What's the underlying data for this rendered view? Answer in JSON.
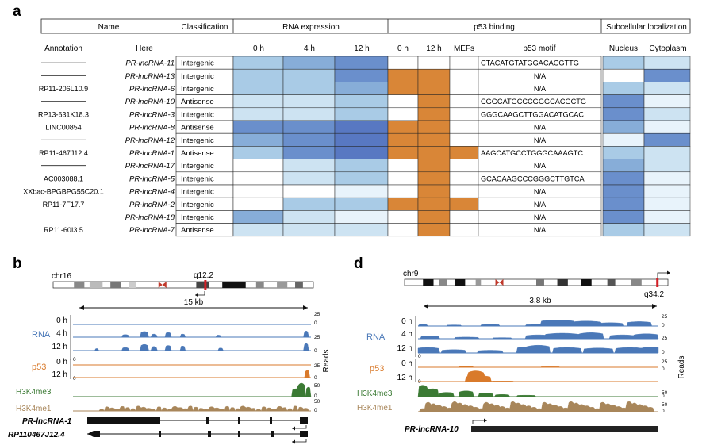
{
  "panel_a": {
    "label": "a",
    "header_top": {
      "name": "Name",
      "classification": "Classification",
      "rna_expression": "RNA expression",
      "p53_binding": "p53 binding",
      "subcellular": "Subcellular localization"
    },
    "header_sub": {
      "annotation": "Annotation",
      "here": "Here",
      "rna_0h": "0 h",
      "rna_4h": "4 h",
      "rna_12h": "12 h",
      "p53_0h": "0 h",
      "p53_12h": "12 h",
      "mefs": "MEFs",
      "motif": "p53 motif",
      "nucleus": "Nucleus",
      "cytoplasm": "Cytoplasm"
    },
    "colors": {
      "blue_scale": [
        "#ffffff",
        "#e8f3fb",
        "#cde3f2",
        "#a9cbe6",
        "#87add8",
        "#6a8fcc",
        "#5878c2"
      ],
      "p53_bound": "#d98637"
    },
    "rows": [
      {
        "annotation": "",
        "here": "PR-lncRNA-11",
        "classification": "Intergenic",
        "rna": [
          3,
          4,
          5
        ],
        "p53": [
          0,
          0,
          0
        ],
        "motif": "CTACATGTATGGACACGTTG",
        "loc": [
          3,
          2
        ]
      },
      {
        "annotation": "",
        "here": "PR-lncRNA-13",
        "classification": "Intergenic",
        "rna": [
          3,
          3,
          5
        ],
        "p53": [
          1,
          1,
          0
        ],
        "motif": "N/A",
        "loc": [
          0,
          5
        ]
      },
      {
        "annotation": "RP11-206L10.9",
        "here": "PR-lncRNA-6",
        "classification": "Intergenic",
        "rna": [
          3,
          3,
          4
        ],
        "p53": [
          1,
          1,
          0
        ],
        "motif": "N/A",
        "loc": [
          3,
          2
        ]
      },
      {
        "annotation": "",
        "here": "PR-lncRNA-10",
        "classification": "Antisense",
        "rna": [
          2,
          2,
          3
        ],
        "p53": [
          0,
          1,
          0
        ],
        "motif": "CGGCATGCCCGGGCACGCTG",
        "loc": [
          5,
          1
        ]
      },
      {
        "annotation": "RP13-631K18.3",
        "here": "PR-lncRNA-3",
        "classification": "Intergenic",
        "rna": [
          2,
          2,
          3
        ],
        "p53": [
          0,
          1,
          0
        ],
        "motif": "GGGCAAGCTTGGACATGCAC",
        "loc": [
          5,
          2
        ]
      },
      {
        "annotation": "LINC00854",
        "here": "PR-lncRNA-8",
        "classification": "Antisense",
        "rna": [
          5,
          5,
          6
        ],
        "p53": [
          1,
          1,
          0
        ],
        "motif": "N/A",
        "loc": [
          4,
          1
        ]
      },
      {
        "annotation": "",
        "here": "PR-lncRNA-12",
        "classification": "Intergenic",
        "rna": [
          4,
          5,
          6
        ],
        "p53": [
          1,
          1,
          0
        ],
        "motif": "N/A",
        "loc": [
          1,
          5
        ]
      },
      {
        "annotation": "RP11-467J12.4",
        "here": "PR-lncRNA-1",
        "classification": "Antisense",
        "rna": [
          3,
          5,
          6
        ],
        "p53": [
          1,
          1,
          1
        ],
        "motif": "AAGCATGCCTGGGCAAAGTC",
        "loc": [
          3,
          2
        ]
      },
      {
        "annotation": "",
        "here": "PR-lncRNA-17",
        "classification": "Intergenic",
        "rna": [
          0,
          2,
          3
        ],
        "p53": [
          0,
          1,
          0
        ],
        "motif": "N/A",
        "loc": [
          4,
          2
        ]
      },
      {
        "annotation": "AC003088.1",
        "here": "PR-lncRNA-5",
        "classification": "Intergenic",
        "rna": [
          0,
          2,
          3
        ],
        "p53": [
          0,
          1,
          0
        ],
        "motif": "GCACAAGCCCGGGCTTGTCA",
        "loc": [
          5,
          1
        ]
      },
      {
        "annotation": "XXbac-BPGBPG55C20.1",
        "here": "PR-lncRNA-4",
        "classification": "Intergenic",
        "rna": [
          0,
          0,
          1
        ],
        "p53": [
          0,
          1,
          0
        ],
        "motif": "N/A",
        "loc": [
          5,
          1
        ]
      },
      {
        "annotation": "RP11-7F17.7",
        "here": "PR-lncRNA-2",
        "classification": "Intergenic",
        "rna": [
          0,
          3,
          3
        ],
        "p53": [
          1,
          1,
          1
        ],
        "motif": "N/A",
        "loc": [
          5,
          1
        ]
      },
      {
        "annotation": "",
        "here": "PR-lncRNA-18",
        "classification": "Intergenic",
        "rna": [
          4,
          2,
          1
        ],
        "p53": [
          0,
          1,
          0
        ],
        "motif": "N/A",
        "loc": [
          5,
          1
        ]
      },
      {
        "annotation": "RP11-60I3.5",
        "here": "PR-lncRNA-7",
        "classification": "Antisense",
        "rna": [
          2,
          2,
          2
        ],
        "p53": [
          0,
          1,
          0
        ],
        "motif": "N/A",
        "loc": [
          3,
          2
        ]
      }
    ]
  },
  "panel_b": {
    "label": "b",
    "chromosome": "chr16",
    "band": "q12.2",
    "scale": "15 kb",
    "tracks": {
      "rna": "RNA",
      "p53": "p53",
      "h3k4me3": "H3K4me3",
      "h3k4me1": "H3K4me1",
      "rna_times": [
        "0 h",
        "4 h",
        "12 h"
      ],
      "p53_times": [
        "0 h",
        "12 h"
      ]
    },
    "axis": {
      "max25": "25",
      "zero": "0",
      "max50": "50",
      "reads": "Reads"
    },
    "genes": [
      "PR-lncRNA-1",
      "RP110467J12.4"
    ],
    "colors": {
      "rna": "#4a78b8",
      "p53": "#d97a2b",
      "h3k4me3": "#3b7a34",
      "h3k4me1": "#a8865a"
    }
  },
  "panel_d": {
    "label": "d",
    "chromosome": "chr9",
    "band": "q34.2",
    "scale": "3.8 kb",
    "tracks": {
      "rna": "RNA",
      "p53": "p53",
      "h3k4me3": "H3K4me3",
      "h3k4me1": "H3K4me1",
      "rna_times": [
        "0 h",
        "4 h",
        "12 h"
      ],
      "p53_times": [
        "0 h",
        "12 h"
      ]
    },
    "axis": {
      "max25": "25",
      "zero": "0",
      "max50": "50",
      "reads": "Reads"
    },
    "genes": [
      "PR-lncRNA-10"
    ]
  }
}
